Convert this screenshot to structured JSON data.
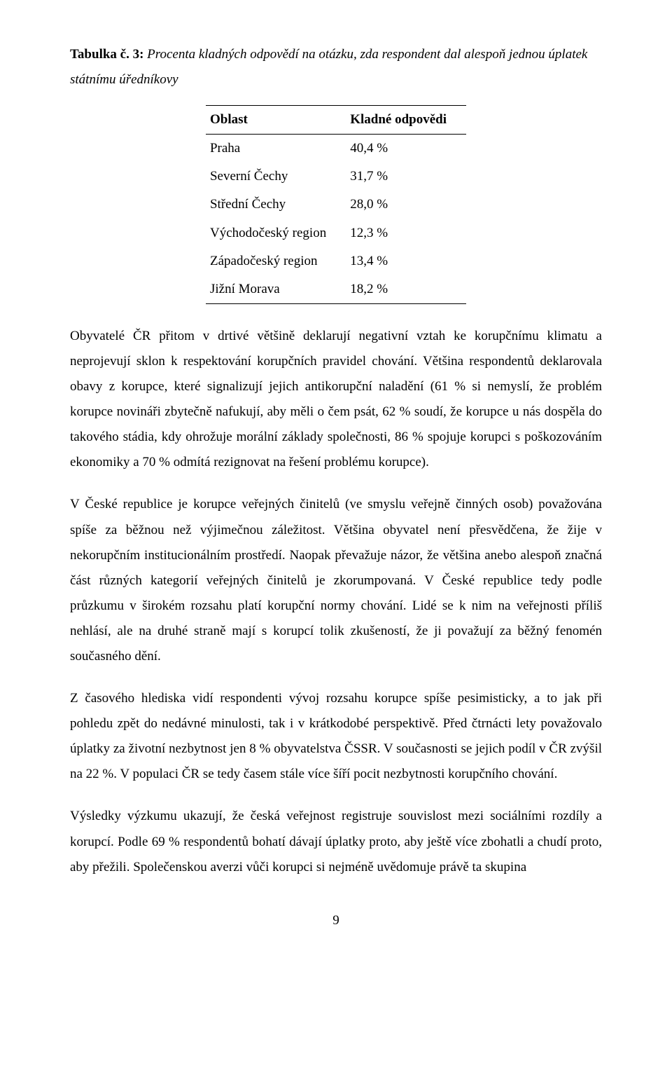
{
  "caption": {
    "label": "Tabulka č. 3:",
    "text": "Procenta kladných odpovědí na otázku, zda respondent dal alespoň jednou úplatek státnímu úředníkovy"
  },
  "table": {
    "columns": [
      "Oblast",
      "Kladné odpovědi"
    ],
    "rows": [
      [
        "Praha",
        "40,4 %"
      ],
      [
        "Severní Čechy",
        "31,7 %"
      ],
      [
        "Střední Čechy",
        "28,0 %"
      ],
      [
        "Východočeský region",
        "12,3 %"
      ],
      [
        "Západočeský region",
        "13,4 %"
      ],
      [
        "Jižní Morava",
        "18,2 %"
      ]
    ]
  },
  "paragraphs": {
    "p1": "Obyvatelé ČR přitom v drtivé většině deklarují negativní vztah ke korupčnímu klimatu a neprojevují sklon k respektování korupčních pravidel chování. Většina respondentů deklarovala obavy z korupce, které signalizují jejich antikorupční naladění (61 % si nemyslí, že problém korupce novináři zbytečně nafukují, aby měli o čem psát, 62 % soudí, že korupce u nás dospěla do takového stádia, kdy ohrožuje morální základy společnosti, 86 % spojuje korupci s poškozováním ekonomiky a 70 % odmítá rezignovat na řešení problému korupce).",
    "p2": "V České republice je korupce veřejných činitelů (ve smyslu veřejně činných osob) považována spíše za běžnou než výjimečnou záležitost. Většina obyvatel není přesvědčena, že žije v nekorupčním institucionálním prostředí. Naopak převažuje názor, že většina anebo alespoň značná část různých kategorií veřejných činitelů je zkorumpovaná. V České republice tedy podle průzkumu v širokém rozsahu platí korupční normy chování. Lidé se k nim na veřejnosti příliš nehlásí, ale na druhé straně mají s korupcí tolik zkušeností, že ji považují za běžný fenomén současného dění.",
    "p3": "Z časového hlediska vidí respondenti vývoj rozsahu korupce spíše pesimisticky, a to jak při pohledu zpět do nedávné minulosti, tak i v krátkodobé perspektivě. Před čtrnácti lety považovalo úplatky za životní nezbytnost jen 8 % obyvatelstva ČSSR. V současnosti se jejich podíl v ČR zvýšil na 22 %. V populaci ČR se tedy časem stále více šíří pocit nezbytnosti korupčního chování.",
    "p4": "Výsledky výzkumu ukazují, že česká veřejnost registruje souvislost mezi sociálními rozdíly a korupcí. Podle 69 % respondentů bohatí dávají úplatky proto, aby ještě více zbohatli a chudí proto, aby přežili. Společenskou averzi vůči korupci si nejméně uvědomuje právě ta skupina"
  },
  "page_number": "9"
}
